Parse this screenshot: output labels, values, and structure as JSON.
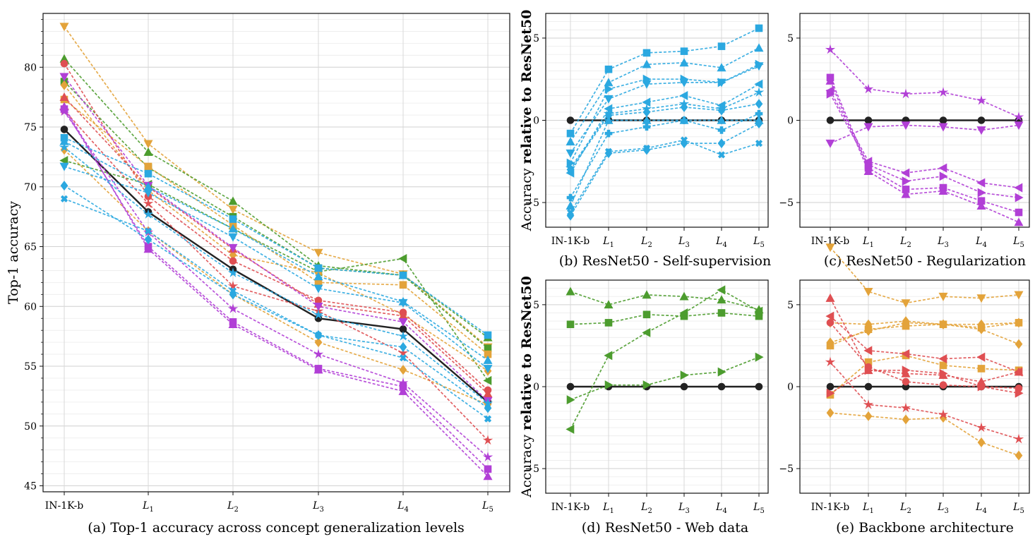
{
  "colors": {
    "black": "#222222",
    "cyan": "#2ba8e0",
    "purple": "#b13fd6",
    "green": "#4c9c2e",
    "orange": "#e3a33a",
    "red": "#df4f52"
  },
  "x_tick_labels": [
    "IN-1K-b",
    "L1",
    "L2",
    "L3",
    "L4",
    "L5"
  ],
  "chart_data": [
    {
      "id": "a",
      "type": "line",
      "caption": "(a) Top-1 accuracy across concept generalization levels",
      "ylabel": "Top-1 accuracy",
      "ylim": [
        44.5,
        84.5
      ],
      "yticks": [
        45,
        50,
        55,
        60,
        65,
        70,
        75,
        80
      ],
      "categories": [
        "IN-1K-b",
        "L1",
        "L2",
        "L3",
        "L4",
        "L5"
      ],
      "grid": true,
      "series": [
        {
          "color": "black",
          "marker": "circle",
          "values": [
            74.8,
            67.9,
            63.1,
            59.0,
            58.1,
            52.0
          ]
        },
        {
          "color": "orange",
          "marker": "tri_down",
          "values": [
            83.4,
            73.6,
            68.1,
            64.5,
            62.7,
            56.6
          ]
        },
        {
          "color": "green",
          "marker": "tri_up",
          "values": [
            80.7,
            72.9,
            68.8,
            63.4,
            62.6,
            57.4
          ]
        },
        {
          "color": "green",
          "marker": "square",
          "values": [
            78.8,
            71.6,
            67.5,
            63.2,
            62.6,
            56.5
          ]
        },
        {
          "color": "green",
          "marker": "tri_left",
          "values": [
            72.2,
            70.2,
            66.5,
            62.9,
            64.0,
            53.8
          ]
        },
        {
          "color": "orange",
          "marker": "diamond",
          "values": [
            78.5,
            69.7,
            64.3,
            62.8,
            59.3,
            54.6
          ]
        },
        {
          "color": "orange",
          "marker": "square",
          "values": [
            77.3,
            71.7,
            66.8,
            62.0,
            61.8,
            56.0
          ]
        },
        {
          "color": "orange",
          "marker": "diamond",
          "values": [
            73.1,
            66.3,
            61.0,
            57.0,
            54.7,
            51.8
          ]
        },
        {
          "color": "red",
          "marker": "circle",
          "values": [
            80.3,
            69.2,
            63.8,
            60.5,
            59.5,
            53.0
          ]
        },
        {
          "color": "red",
          "marker": "star",
          "values": [
            76.4,
            68.6,
            61.7,
            59.6,
            56.1,
            48.8
          ]
        },
        {
          "color": "red",
          "marker": "tri_up",
          "values": [
            77.5,
            70.0,
            64.8,
            60.2,
            59.2,
            52.7
          ]
        },
        {
          "color": "purple",
          "marker": "tri_down",
          "values": [
            79.2,
            70.1,
            64.9,
            60.0,
            58.7,
            52.1
          ]
        },
        {
          "color": "purple",
          "marker": "square",
          "values": [
            76.5,
            65.0,
            58.7,
            54.8,
            53.3,
            46.4
          ]
        },
        {
          "color": "purple",
          "marker": "tri_up",
          "values": [
            76.7,
            64.8,
            58.5,
            54.7,
            52.9,
            45.8
          ]
        },
        {
          "color": "purple",
          "marker": "star",
          "values": [
            76.3,
            66.2,
            59.8,
            56.0,
            53.6,
            47.4
          ]
        },
        {
          "color": "cyan",
          "marker": "square",
          "values": [
            74.1,
            71.1,
            67.3,
            63.2,
            62.6,
            57.6
          ]
        },
        {
          "color": "cyan",
          "marker": "tri_up",
          "values": [
            73.8,
            70.0,
            66.5,
            62.5,
            60.4,
            55.5
          ]
        },
        {
          "color": "cyan",
          "marker": "tri_down",
          "values": [
            71.7,
            69.5,
            65.8,
            61.5,
            60.3,
            54.8
          ]
        },
        {
          "color": "cyan",
          "marker": "x",
          "values": [
            69.0,
            66.3,
            61.3,
            57.6,
            55.7,
            50.6
          ]
        },
        {
          "color": "cyan",
          "marker": "diamond",
          "values": [
            70.1,
            65.6,
            61.0,
            57.6,
            56.6,
            51.5
          ]
        },
        {
          "color": "cyan",
          "marker": "star",
          "values": [
            73.3,
            67.7,
            62.8,
            59.3,
            57.5,
            51.9
          ]
        }
      ]
    },
    {
      "id": "b",
      "type": "line",
      "caption": "(b) ResNet50 - Self-supervision",
      "ylabel": "Accuracy relative to ResNet50",
      "ylim": [
        -6.5,
        6.5
      ],
      "yticks": [
        -5,
        0,
        5
      ],
      "categories": [
        "IN-1K-b",
        "L1",
        "L2",
        "L3",
        "L4",
        "L5"
      ],
      "grid": true,
      "series": [
        {
          "color": "black",
          "marker": "circle",
          "values": [
            0,
            0,
            0,
            0,
            0,
            0
          ]
        },
        {
          "color": "cyan",
          "marker": "square",
          "values": [
            -0.8,
            3.1,
            4.1,
            4.2,
            4.5,
            5.6
          ]
        },
        {
          "color": "cyan",
          "marker": "tri_up",
          "values": [
            -1.3,
            2.3,
            3.4,
            3.5,
            3.2,
            4.4
          ]
        },
        {
          "color": "cyan",
          "marker": "tri_right",
          "values": [
            -2.6,
            1.9,
            2.5,
            2.5,
            2.3,
            3.4
          ]
        },
        {
          "color": "cyan",
          "marker": "tri_down",
          "values": [
            -2.0,
            1.3,
            2.2,
            2.3,
            2.3,
            3.3
          ]
        },
        {
          "color": "cyan",
          "marker": "tri_left",
          "values": [
            -3.2,
            0.7,
            1.1,
            1.5,
            0.9,
            2.2
          ]
        },
        {
          "color": "cyan",
          "marker": "star",
          "values": [
            -2.9,
            0.4,
            0.7,
            1.0,
            0.7,
            1.7
          ]
        },
        {
          "color": "cyan",
          "marker": "diamond",
          "values": [
            -3.0,
            0.3,
            0.5,
            0.8,
            0.6,
            1.0
          ]
        },
        {
          "color": "cyan",
          "marker": "plus",
          "values": [
            -4.7,
            -0.8,
            -0.4,
            0.0,
            -0.6,
            0.4
          ]
        },
        {
          "color": "cyan",
          "marker": "x",
          "values": [
            -5.6,
            -1.9,
            -1.7,
            -1.2,
            -2.1,
            -1.4
          ]
        },
        {
          "color": "cyan",
          "marker": "diamond",
          "values": [
            -5.8,
            -2.0,
            -1.8,
            -1.4,
            -1.4,
            -0.2
          ]
        },
        {
          "color": "cyan",
          "marker": "tri_up",
          "values": [
            -5.2,
            0.0,
            0.0,
            0.0,
            0.0,
            0.0
          ]
        }
      ]
    },
    {
      "id": "c",
      "type": "line",
      "caption": "(c) ResNet50 - Regularization",
      "ylabel": "",
      "ylim": [
        -6.5,
        6.5
      ],
      "yticks": [
        -5,
        0,
        5
      ],
      "categories": [
        "IN-1K-b",
        "L1",
        "L2",
        "L3",
        "L4",
        "L5"
      ],
      "grid": true,
      "series": [
        {
          "color": "black",
          "marker": "circle",
          "values": [
            0,
            0,
            0,
            0,
            0,
            0
          ]
        },
        {
          "color": "purple",
          "marker": "star",
          "values": [
            4.3,
            1.9,
            1.6,
            1.7,
            1.2,
            0.2
          ]
        },
        {
          "color": "purple",
          "marker": "tri_down",
          "values": [
            -1.4,
            -0.4,
            -0.3,
            -0.4,
            -0.6,
            -0.3
          ]
        },
        {
          "color": "purple",
          "marker": "square",
          "values": [
            2.6,
            -2.9,
            -4.2,
            -4.1,
            -4.9,
            -5.6
          ]
        },
        {
          "color": "purple",
          "marker": "tri_up",
          "values": [
            2.4,
            -3.1,
            -4.5,
            -4.3,
            -5.2,
            -6.2
          ]
        },
        {
          "color": "purple",
          "marker": "tri_right",
          "values": [
            1.6,
            -2.7,
            -3.7,
            -3.4,
            -4.4,
            -4.7
          ]
        },
        {
          "color": "purple",
          "marker": "tri_left",
          "values": [
            1.8,
            -2.5,
            -3.2,
            -2.9,
            -3.8,
            -4.1
          ]
        }
      ]
    },
    {
      "id": "d",
      "type": "line",
      "caption": "(d) ResNet50 - Web data",
      "ylabel": "Accuracy relative to ResNet50",
      "ylim": [
        -6.5,
        6.5
      ],
      "yticks": [
        -5,
        0,
        5
      ],
      "categories": [
        "IN-1K-b",
        "L1",
        "L2",
        "L3",
        "L4",
        "L5"
      ],
      "grid": true,
      "series": [
        {
          "color": "black",
          "marker": "circle",
          "values": [
            0,
            0,
            0,
            0,
            0,
            0
          ]
        },
        {
          "color": "green",
          "marker": "tri_up",
          "values": [
            5.8,
            5.0,
            5.6,
            5.5,
            5.3,
            4.7
          ]
        },
        {
          "color": "green",
          "marker": "square",
          "values": [
            3.8,
            3.9,
            4.4,
            4.3,
            4.5,
            4.3
          ]
        },
        {
          "color": "green",
          "marker": "tri_left",
          "values": [
            -2.6,
            1.9,
            3.3,
            4.5,
            5.9,
            4.6
          ]
        },
        {
          "color": "green",
          "marker": "tri_right",
          "values": [
            -0.8,
            0.1,
            0.1,
            0.7,
            0.9,
            1.8
          ]
        }
      ]
    },
    {
      "id": "e",
      "type": "line",
      "caption": "(e) Backbone architecture",
      "ylabel": "",
      "ylim": [
        -6.5,
        6.5
      ],
      "yticks": [
        -5,
        0,
        5
      ],
      "categories": [
        "IN-1K-b",
        "L1",
        "L2",
        "L3",
        "L4",
        "L5"
      ],
      "grid": true,
      "series": [
        {
          "color": "black",
          "marker": "circle",
          "values": [
            0,
            0,
            0,
            0,
            0,
            0
          ]
        },
        {
          "color": "orange",
          "marker": "tri_down",
          "values": [
            8.5,
            5.8,
            5.1,
            5.5,
            5.4,
            5.6
          ]
        },
        {
          "color": "orange",
          "marker": "diamond",
          "values": [
            3.9,
            3.8,
            4.0,
            3.8,
            3.8,
            3.9
          ]
        },
        {
          "color": "orange",
          "marker": "square",
          "values": [
            2.5,
            3.5,
            3.7,
            3.8,
            3.6,
            3.9
          ]
        },
        {
          "color": "orange",
          "marker": "diamond",
          "values": [
            2.7,
            3.4,
            3.9,
            3.8,
            3.5,
            2.6
          ]
        },
        {
          "color": "orange",
          "marker": "square",
          "values": [
            -0.5,
            1.5,
            1.9,
            1.3,
            1.1,
            1.0
          ]
        },
        {
          "color": "orange",
          "marker": "diamond",
          "values": [
            -1.6,
            -1.8,
            -2.0,
            -1.9,
            -3.4,
            -4.2
          ]
        },
        {
          "color": "red",
          "marker": "tri_up",
          "values": [
            5.4,
            1.0,
            0.8,
            0.7,
            0.3,
            0.9
          ]
        },
        {
          "color": "red",
          "marker": "circle",
          "values": [
            3.9,
            1.2,
            0.3,
            0.1,
            0.0,
            -0.1
          ]
        },
        {
          "color": "red",
          "marker": "tri_left",
          "values": [
            4.3,
            2.2,
            2.0,
            1.7,
            1.8,
            0.9
          ]
        },
        {
          "color": "red",
          "marker": "star",
          "values": [
            1.5,
            -1.1,
            -1.3,
            -1.7,
            -2.5,
            -3.2
          ]
        },
        {
          "color": "red",
          "marker": "tri_right",
          "values": [
            -0.4,
            1.0,
            1.0,
            0.8,
            0.0,
            -0.4
          ]
        }
      ]
    }
  ]
}
